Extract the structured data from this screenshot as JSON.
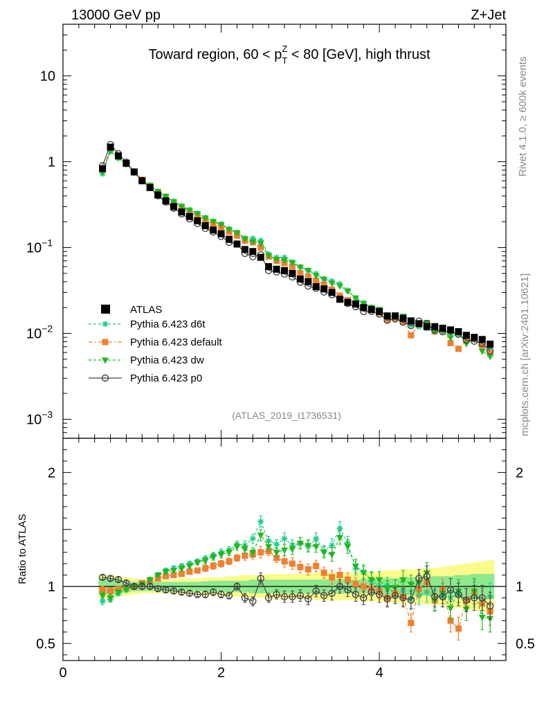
{
  "header": {
    "left": "13000 GeV pp",
    "right": "Z+Jet"
  },
  "side_labels": {
    "rivet": "Rivet 4.1.0, ≥ 600k events",
    "mcplots": "mcplots.cern.ch [arXiv:2401.10621]"
  },
  "chart_data": {
    "type": "line",
    "title_parts": {
      "pre": "Toward region, 60 < p",
      "sup": "Z",
      "sub": "T",
      "post": " < 80 [GeV], high thrust"
    },
    "watermark": "(ATLAS_2019_I1736531)",
    "xlabel": "",
    "ylabel_ratio": "Ratio to ATLAS",
    "xlim": [
      0,
      5.6
    ],
    "ylim_main": [
      0.0006,
      40
    ],
    "ylim_ratio": [
      0.35,
      2.3
    ],
    "xticks": [
      {
        "v": 0,
        "label": "0"
      },
      {
        "v": 2,
        "label": "2"
      },
      {
        "v": 4,
        "label": "4"
      }
    ],
    "yticks_main": [
      {
        "v": 0.001,
        "label": "10",
        "exp": "−3"
      },
      {
        "v": 0.01,
        "label": "10",
        "exp": "−2"
      },
      {
        "v": 0.1,
        "label": "10",
        "exp": "−1"
      },
      {
        "v": 1,
        "label": "1",
        "exp": ""
      },
      {
        "v": 10,
        "label": "10",
        "exp": ""
      }
    ],
    "yticks_ratio": [
      {
        "v": 0.5,
        "label": "0.5"
      },
      {
        "v": 1,
        "label": "1"
      },
      {
        "v": 2,
        "label": "2"
      }
    ],
    "x": [
      0.5,
      0.6,
      0.7,
      0.8,
      0.9,
      1.0,
      1.1,
      1.2,
      1.3,
      1.4,
      1.5,
      1.6,
      1.7,
      1.8,
      1.9,
      2.0,
      2.1,
      2.2,
      2.3,
      2.4,
      2.5,
      2.6,
      2.7,
      2.8,
      2.9,
      3.0,
      3.1,
      3.2,
      3.3,
      3.4,
      3.5,
      3.6,
      3.7,
      3.8,
      3.9,
      4.0,
      4.1,
      4.2,
      4.3,
      4.4,
      4.5,
      4.6,
      4.7,
      4.8,
      4.9,
      5.0,
      5.1,
      5.2,
      5.3,
      5.4
    ],
    "data": {
      "name": "ATLAS",
      "values": [
        0.83,
        1.48,
        1.17,
        0.96,
        0.76,
        0.6,
        0.5,
        0.41,
        0.35,
        0.3,
        0.26,
        0.23,
        0.205,
        0.18,
        0.16,
        0.145,
        0.125,
        0.11,
        0.095,
        0.09,
        0.077,
        0.06,
        0.056,
        0.054,
        0.05,
        0.043,
        0.04,
        0.035,
        0.033,
        0.03,
        0.025,
        0.023,
        0.022,
        0.02,
        0.019,
        0.018,
        0.016,
        0.016,
        0.015,
        0.014,
        0.013,
        0.012,
        0.012,
        0.0115,
        0.011,
        0.0105,
        0.0095,
        0.009,
        0.0085,
        0.0075
      ],
      "band_green": [
        0.07,
        0.07,
        0.06,
        0.05,
        0.04,
        0.04,
        0.04,
        0.04,
        0.04,
        0.04,
        0.04,
        0.04,
        0.04,
        0.045,
        0.05,
        0.05,
        0.05,
        0.05,
        0.05,
        0.06,
        0.06,
        0.06,
        0.06,
        0.06,
        0.06,
        0.06,
        0.06,
        0.06,
        0.06,
        0.06,
        0.06,
        0.06,
        0.06,
        0.06,
        0.07,
        0.07,
        0.07,
        0.07,
        0.08,
        0.08,
        0.08,
        0.08,
        0.09,
        0.09,
        0.09,
        0.1,
        0.1,
        0.11,
        0.11,
        0.11
      ],
      "band_yellow": [
        0.1,
        0.1,
        0.09,
        0.08,
        0.07,
        0.06,
        0.06,
        0.06,
        0.06,
        0.06,
        0.07,
        0.07,
        0.07,
        0.08,
        0.08,
        0.08,
        0.09,
        0.09,
        0.1,
        0.1,
        0.1,
        0.11,
        0.11,
        0.11,
        0.11,
        0.11,
        0.11,
        0.12,
        0.12,
        0.12,
        0.12,
        0.12,
        0.12,
        0.13,
        0.13,
        0.13,
        0.14,
        0.14,
        0.15,
        0.15,
        0.15,
        0.16,
        0.16,
        0.17,
        0.18,
        0.19,
        0.2,
        0.21,
        0.22,
        0.23
      ]
    },
    "series": [
      {
        "name": "Pythia 6.423 d6t",
        "color": "#1ecc8a",
        "dash": "4,3",
        "marker": "star",
        "ratio": [
          0.87,
          0.89,
          0.94,
          0.97,
          1.0,
          1.02,
          1.06,
          1.1,
          1.14,
          1.16,
          1.18,
          1.2,
          1.22,
          1.24,
          1.27,
          1.3,
          1.32,
          1.37,
          1.36,
          1.42,
          1.57,
          1.4,
          1.37,
          1.42,
          1.36,
          1.38,
          1.35,
          1.42,
          1.31,
          1.36,
          1.51,
          1.38,
          1.16,
          1.13,
          1.05,
          1.0,
          1.01,
          0.92,
          0.96,
          0.89,
          0.92,
          0.95,
          0.87,
          0.91,
          0.9,
          0.93,
          0.88,
          0.93,
          0.87,
          0.91
        ],
        "ratio_err": [
          0.03,
          0.03,
          0.02,
          0.02,
          0.02,
          0.02,
          0.02,
          0.02,
          0.02,
          0.02,
          0.02,
          0.02,
          0.02,
          0.03,
          0.03,
          0.03,
          0.03,
          0.03,
          0.04,
          0.04,
          0.05,
          0.04,
          0.04,
          0.05,
          0.05,
          0.05,
          0.05,
          0.05,
          0.05,
          0.06,
          0.06,
          0.06,
          0.06,
          0.06,
          0.07,
          0.07,
          0.07,
          0.07,
          0.08,
          0.08,
          0.08,
          0.09,
          0.09,
          0.09,
          0.1,
          0.1,
          0.1,
          0.11,
          0.11,
          0.12
        ]
      },
      {
        "name": "Pythia 6.423 default",
        "color": "#f08030",
        "dash": "6,3,2,3",
        "marker": "square",
        "ratio": [
          0.97,
          0.96,
          0.98,
          0.99,
          1.0,
          1.03,
          1.05,
          1.07,
          1.09,
          1.1,
          1.11,
          1.13,
          1.14,
          1.16,
          1.18,
          1.2,
          1.22,
          1.25,
          1.27,
          1.28,
          1.3,
          1.31,
          1.25,
          1.22,
          1.2,
          1.17,
          1.15,
          1.18,
          1.12,
          1.08,
          1.1,
          1.06,
          1.02,
          1.0,
          0.98,
          0.96,
          0.9,
          0.94,
          0.91,
          0.68,
          0.98,
          1.04,
          0.88,
          0.97,
          0.7,
          0.63,
          0.88,
          0.95,
          0.85,
          0.78
        ],
        "ratio_err": [
          0.03,
          0.03,
          0.02,
          0.02,
          0.02,
          0.02,
          0.02,
          0.02,
          0.02,
          0.02,
          0.02,
          0.02,
          0.02,
          0.03,
          0.03,
          0.03,
          0.03,
          0.03,
          0.04,
          0.04,
          0.05,
          0.04,
          0.04,
          0.05,
          0.05,
          0.05,
          0.05,
          0.05,
          0.05,
          0.06,
          0.06,
          0.06,
          0.06,
          0.06,
          0.07,
          0.07,
          0.07,
          0.07,
          0.08,
          0.08,
          0.08,
          0.09,
          0.09,
          0.09,
          0.1,
          0.1,
          0.1,
          0.11,
          0.11,
          0.12
        ]
      },
      {
        "name": "Pythia 6.423 dw",
        "color": "#1fb81f",
        "dash": "4,3",
        "marker": "tri",
        "ratio": [
          0.92,
          0.9,
          0.95,
          0.98,
          1.0,
          1.02,
          1.06,
          1.1,
          1.13,
          1.14,
          1.16,
          1.18,
          1.21,
          1.23,
          1.26,
          1.28,
          1.3,
          1.35,
          1.33,
          1.3,
          1.45,
          1.35,
          1.3,
          1.32,
          1.33,
          1.38,
          1.36,
          1.35,
          1.3,
          1.28,
          1.43,
          1.35,
          1.18,
          1.12,
          1.06,
          1.06,
          0.98,
          0.99,
          1.06,
          1.02,
          1.03,
          1.12,
          0.88,
          0.94,
          0.81,
          0.96,
          0.8,
          0.96,
          0.73,
          0.72
        ],
        "ratio_err": [
          0.03,
          0.03,
          0.02,
          0.02,
          0.02,
          0.02,
          0.02,
          0.02,
          0.02,
          0.02,
          0.02,
          0.02,
          0.02,
          0.03,
          0.03,
          0.03,
          0.03,
          0.03,
          0.04,
          0.04,
          0.05,
          0.04,
          0.04,
          0.05,
          0.05,
          0.05,
          0.05,
          0.05,
          0.05,
          0.06,
          0.06,
          0.06,
          0.06,
          0.06,
          0.07,
          0.07,
          0.07,
          0.07,
          0.08,
          0.08,
          0.08,
          0.09,
          0.09,
          0.09,
          0.1,
          0.1,
          0.1,
          0.11,
          0.11,
          0.12
        ]
      },
      {
        "name": "Pythia 6.423 p0",
        "color": "#444444",
        "dash": "",
        "marker": "circle",
        "ratio": [
          1.08,
          1.07,
          1.06,
          1.03,
          1.0,
          1.0,
          1.0,
          0.98,
          0.97,
          0.96,
          0.95,
          0.94,
          0.93,
          0.93,
          0.95,
          0.93,
          0.92,
          1.0,
          0.9,
          0.87,
          1.07,
          0.9,
          0.93,
          0.91,
          0.91,
          0.92,
          0.89,
          0.96,
          0.92,
          0.94,
          1.0,
          0.97,
          0.93,
          0.9,
          0.95,
          0.93,
          0.89,
          0.92,
          0.9,
          0.88,
          1.07,
          1.09,
          0.91,
          0.91,
          0.97,
          0.93,
          0.88,
          0.9,
          0.9,
          0.83
        ],
        "ratio_err": [
          0.02,
          0.02,
          0.02,
          0.02,
          0.02,
          0.02,
          0.02,
          0.02,
          0.02,
          0.02,
          0.02,
          0.02,
          0.02,
          0.03,
          0.03,
          0.03,
          0.03,
          0.03,
          0.04,
          0.04,
          0.05,
          0.04,
          0.04,
          0.05,
          0.05,
          0.05,
          0.05,
          0.05,
          0.05,
          0.06,
          0.06,
          0.06,
          0.06,
          0.06,
          0.07,
          0.07,
          0.07,
          0.07,
          0.08,
          0.08,
          0.08,
          0.09,
          0.09,
          0.09,
          0.1,
          0.1,
          0.1,
          0.11,
          0.11,
          0.12
        ]
      }
    ],
    "legend_position": "bottom-left"
  }
}
